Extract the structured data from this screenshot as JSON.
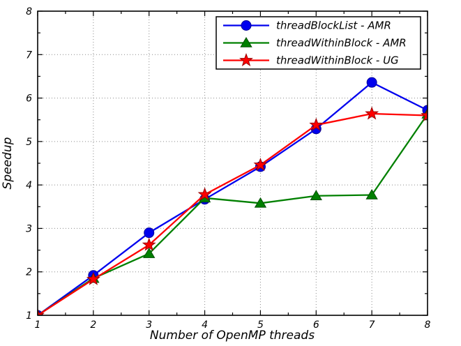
{
  "figure": {
    "background": "#ffffff",
    "frame_color": "#000000",
    "grid_color": "#8a8a8a",
    "grid_style": "dotted"
  },
  "chart_data": {
    "type": "line",
    "title": "",
    "xlabel": "Number of OpenMP threads",
    "ylabel": "Speedup",
    "xlim": [
      1,
      8
    ],
    "ylim": [
      1,
      8
    ],
    "xticks": [
      1,
      2,
      3,
      4,
      5,
      6,
      7,
      8
    ],
    "yticks": [
      1,
      2,
      3,
      4,
      5,
      6,
      7,
      8
    ],
    "grid": true,
    "legend_position": "upper right",
    "x": [
      1,
      2,
      3,
      4,
      5,
      6,
      7,
      8
    ],
    "series": [
      {
        "name": "threadBlockList - AMR",
        "color": "#0000ee",
        "edge_color": "#000099",
        "marker": "circle",
        "values": [
          1.0,
          1.92,
          2.9,
          3.67,
          4.42,
          5.29,
          6.36,
          5.72
        ]
      },
      {
        "name": "threadWithinBlock - AMR",
        "color": "#008000",
        "edge_color": "#004d00",
        "marker": "triangle",
        "values": [
          1.0,
          1.85,
          2.42,
          3.7,
          3.58,
          3.75,
          3.77,
          5.63
        ]
      },
      {
        "name": "threadWithinBlock - UG",
        "color": "#ff0000",
        "edge_color": "#990000",
        "marker": "star",
        "values": [
          1.0,
          1.83,
          2.62,
          3.78,
          4.46,
          5.38,
          5.64,
          5.6
        ]
      }
    ]
  }
}
